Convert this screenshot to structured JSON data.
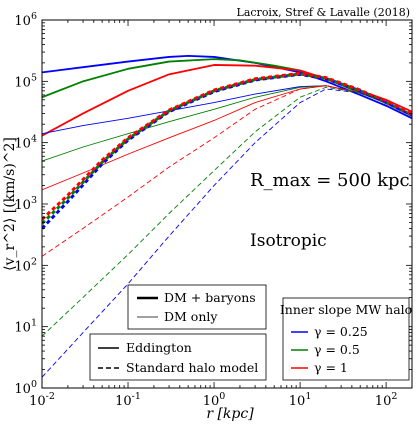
{
  "chart_data": {
    "type": "line",
    "credit": "Lacroix, Stref & Lavalle (2018)",
    "xlabel": "r [kpc]",
    "ylabel": "⟨v_r^2⟩ [(km/s)^2]",
    "xscale": "log",
    "yscale": "log",
    "xlim": [
      0.01,
      200
    ],
    "ylim": [
      1,
      1000000
    ],
    "x_tick_labels": [
      "10^-2",
      "10^-1",
      "10^0",
      "10^1",
      "10^2"
    ],
    "y_tick_labels": [
      "10^0",
      "10^1",
      "10^2",
      "10^3",
      "10^4",
      "10^5",
      "10^6"
    ],
    "annotations": {
      "rmax": "R_max = 500 kpc",
      "anisotropy": "Isotropic"
    },
    "legend_components": {
      "placement": "bottom-left",
      "items": [
        {
          "label": "DM + baryons",
          "style": "thick"
        },
        {
          "label": "DM only",
          "style": "thin"
        }
      ]
    },
    "legend_models": {
      "placement": "bottom-left",
      "items": [
        {
          "label": "Eddington",
          "style": "solid"
        },
        {
          "label": "Standard halo model",
          "style": "dashed"
        }
      ]
    },
    "legend_gamma": {
      "placement": "bottom-right",
      "title": "Inner slope MW halo",
      "items": [
        {
          "label": "γ = 0.25",
          "color": "#0000ff"
        },
        {
          "label": "γ = 0.5",
          "color": "#008000"
        },
        {
          "label": "γ = 1",
          "color": "#ff0000"
        }
      ]
    },
    "colors": {
      "gamma_0.25": "#0000ff",
      "gamma_0.5": "#008000",
      "gamma_1": "#ff0000"
    },
    "series": [
      {
        "gamma": "0.25",
        "color": "#0000ff",
        "component": "DM + baryons",
        "model": "Eddington",
        "x": [
          0.01,
          0.03,
          0.1,
          0.3,
          0.5,
          1,
          3,
          10,
          20,
          50,
          100,
          200
        ],
        "y": [
          140000,
          170000,
          210000,
          250000,
          260000,
          250000,
          200000,
          140000,
          100000,
          60000,
          40000,
          25000
        ]
      },
      {
        "gamma": "0.5",
        "color": "#008000",
        "component": "DM + baryons",
        "model": "Eddington",
        "x": [
          0.01,
          0.03,
          0.1,
          0.3,
          1,
          2,
          5,
          10,
          20,
          50,
          100,
          200
        ],
        "y": [
          55000,
          100000,
          160000,
          210000,
          230000,
          220000,
          180000,
          150000,
          110000,
          65000,
          45000,
          28000
        ]
      },
      {
        "gamma": "1",
        "color": "#ff0000",
        "component": "DM + baryons",
        "model": "Eddington",
        "x": [
          0.01,
          0.03,
          0.1,
          0.3,
          1,
          3,
          10,
          20,
          50,
          100,
          200
        ],
        "y": [
          13000,
          30000,
          70000,
          130000,
          185000,
          180000,
          150000,
          110000,
          70000,
          50000,
          32000
        ]
      },
      {
        "gamma": "0.25",
        "color": "#0000ff",
        "component": "DM only",
        "model": "Eddington",
        "x": [
          0.01,
          0.03,
          0.1,
          0.3,
          1,
          3,
          10,
          20,
          50,
          100,
          200
        ],
        "y": [
          14000,
          19000,
          25000,
          33000,
          45000,
          62000,
          82000,
          85000,
          65000,
          45000,
          27000
        ]
      },
      {
        "gamma": "0.5",
        "color": "#008000",
        "component": "DM only",
        "model": "Eddington",
        "x": [
          0.01,
          0.03,
          0.1,
          0.3,
          1,
          3,
          10,
          20,
          50,
          100,
          200
        ],
        "y": [
          5000,
          8500,
          14000,
          22000,
          35000,
          55000,
          80000,
          85000,
          65000,
          45000,
          27000
        ]
      },
      {
        "gamma": "1",
        "color": "#ff0000",
        "component": "DM only",
        "model": "Eddington",
        "x": [
          0.01,
          0.03,
          0.1,
          0.3,
          1,
          3,
          10,
          20,
          50,
          100,
          200
        ],
        "y": [
          1700,
          3200,
          6500,
          12000,
          23000,
          45000,
          75000,
          85000,
          65000,
          45000,
          27000
        ]
      },
      {
        "gamma": "0.25",
        "color": "#0000ff",
        "component": "DM + baryons",
        "model": "Standard halo model",
        "x": [
          0.01,
          0.02,
          0.05,
          0.1,
          0.3,
          1,
          3,
          10,
          20,
          50,
          100,
          200
        ],
        "y": [
          400,
          1100,
          4500,
          11000,
          32000,
          68000,
          105000,
          130000,
          110000,
          70000,
          45000,
          28000
        ]
      },
      {
        "gamma": "0.5",
        "color": "#008000",
        "component": "DM + baryons",
        "model": "Standard halo model",
        "x": [
          0.01,
          0.02,
          0.05,
          0.1,
          0.3,
          1,
          3,
          10,
          20,
          50,
          100,
          200
        ],
        "y": [
          480,
          1250,
          4800,
          11500,
          33000,
          70000,
          107000,
          132000,
          112000,
          70000,
          45000,
          28000
        ]
      },
      {
        "gamma": "1",
        "color": "#ff0000",
        "component": "DM + baryons",
        "model": "Standard halo model",
        "x": [
          0.01,
          0.02,
          0.05,
          0.1,
          0.3,
          1,
          3,
          10,
          20,
          50,
          100,
          200
        ],
        "y": [
          560,
          1400,
          5200,
          12000,
          34000,
          72000,
          110000,
          135000,
          115000,
          72000,
          46000,
          29000
        ]
      },
      {
        "gamma": "1",
        "color": "#ff0000",
        "component": "DM only",
        "model": "Standard halo model",
        "x": [
          0.01,
          0.03,
          0.1,
          0.3,
          1,
          3,
          10,
          20,
          50,
          100,
          200
        ],
        "y": [
          140,
          400,
          1300,
          4000,
          12000,
          35000,
          75000,
          85000,
          65000,
          45000,
          27000
        ]
      },
      {
        "gamma": "0.5",
        "color": "#008000",
        "component": "DM only",
        "model": "Standard halo model",
        "x": [
          0.01,
          0.03,
          0.1,
          0.3,
          1,
          3,
          10,
          20,
          50,
          100,
          200
        ],
        "y": [
          7,
          30,
          150,
          700,
          3500,
          15000,
          55000,
          80000,
          65000,
          45000,
          27000
        ]
      },
      {
        "gamma": "0.25",
        "color": "#0000ff",
        "component": "DM only",
        "model": "Standard halo model",
        "x": [
          0.01,
          0.03,
          0.1,
          0.3,
          1,
          3,
          10,
          20,
          50,
          100,
          200
        ],
        "y": [
          1.5,
          8,
          50,
          300,
          2000,
          10000,
          45000,
          75000,
          65000,
          45000,
          27000
        ]
      }
    ]
  }
}
